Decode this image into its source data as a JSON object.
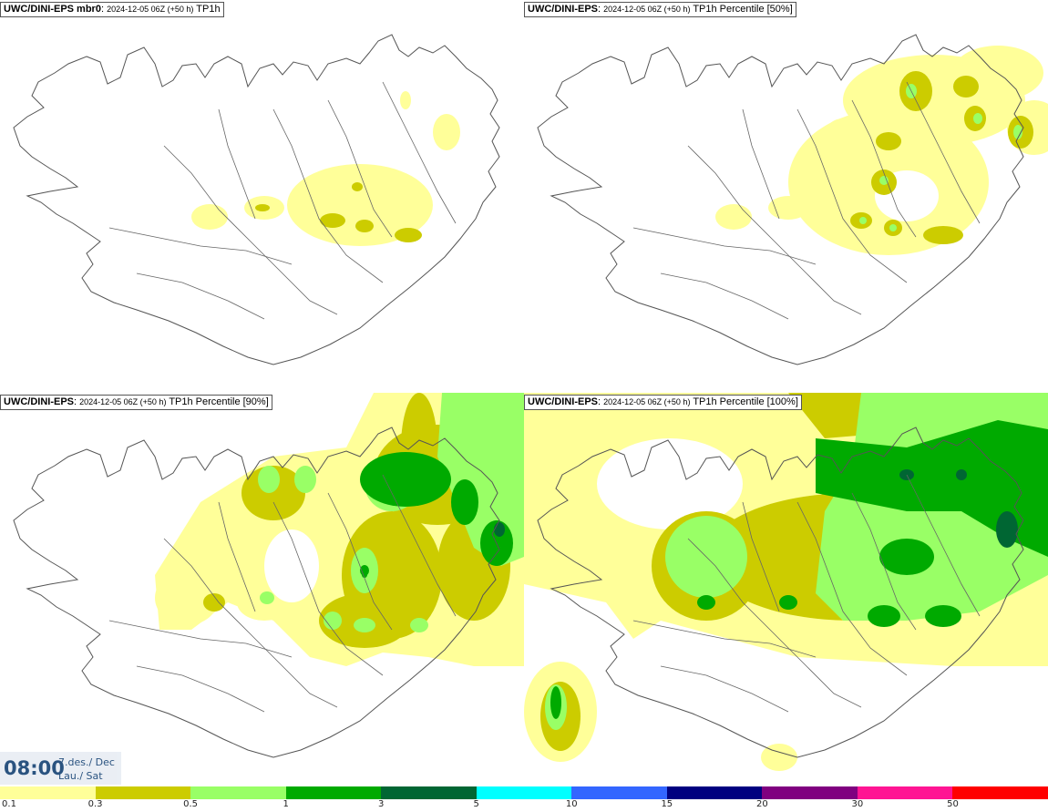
{
  "panels": [
    {
      "model": "UWC/DINI-EPS mbr0",
      "run": "2024-12-05 06Z (+50 h)",
      "field": "TP1h"
    },
    {
      "model": "UWC/DINI-EPS",
      "run": "2024-12-05 06Z (+50 h)",
      "field": "TP1h Percentile [50%]"
    },
    {
      "model": "UWC/DINI-EPS",
      "run": "2024-12-05 06Z (+50 h)",
      "field": "TP1h Percentile [90%]"
    },
    {
      "model": "UWC/DINI-EPS",
      "run": "2024-12-05 06Z (+50 h)",
      "field": "TP1h Percentile [100%]"
    }
  ],
  "valid_time": {
    "time": "08:00",
    "date_line1": "7.des./ Dec",
    "date_line2": "Lau./ Sat"
  },
  "legend": {
    "labels": [
      "0.1",
      "0.3",
      "0.5",
      "1",
      "3",
      "5",
      "10",
      "15",
      "20",
      "30",
      "50"
    ],
    "colors": [
      "#ffff99",
      "#cccc00",
      "#99ff66",
      "#00aa00",
      "#006633",
      "#00ffff",
      "#3366ff",
      "#000080",
      "#800080",
      "#ff1493",
      "#ff0000"
    ]
  }
}
